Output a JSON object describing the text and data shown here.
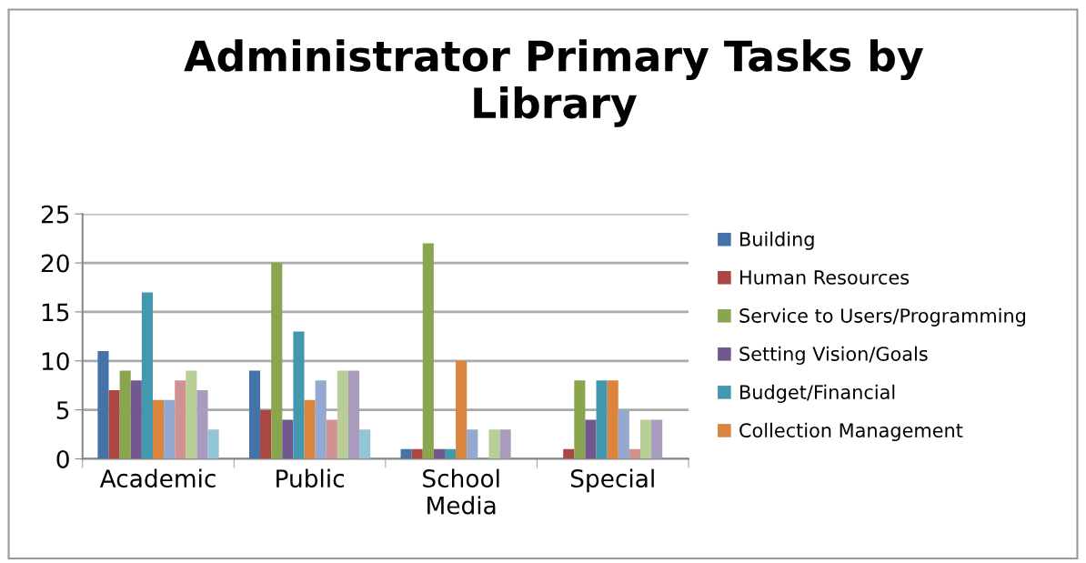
{
  "chart_data": {
    "type": "bar",
    "title": "Administrator Primary Tasks by Library",
    "categories": [
      "Academic",
      "Public",
      "School\nMedia",
      "Special"
    ],
    "series": [
      {
        "name": "Building",
        "color": "#4572a7",
        "values": [
          11,
          9,
          1,
          0
        ]
      },
      {
        "name": "Human Resources",
        "color": "#aa4643",
        "values": [
          7,
          5,
          1,
          1
        ]
      },
      {
        "name": "Service to Users/Programming",
        "color": "#89a54e",
        "values": [
          9,
          20,
          22,
          8
        ]
      },
      {
        "name": "Setting Vision/Goals",
        "color": "#71588f",
        "values": [
          8,
          4,
          1,
          4
        ]
      },
      {
        "name": "Budget/Financial",
        "color": "#4198af",
        "values": [
          17,
          13,
          1,
          8
        ]
      },
      {
        "name": "Collection Management",
        "color": "#db843d",
        "values": [
          6,
          6,
          10,
          8
        ]
      },
      {
        "color": "#93a9cf",
        "values": [
          6,
          8,
          3,
          5
        ]
      },
      {
        "color": "#d19392",
        "values": [
          8,
          4,
          0,
          1
        ]
      },
      {
        "color": "#b9cd96",
        "values": [
          9,
          9,
          3,
          4
        ]
      },
      {
        "color": "#a99bbd",
        "values": [
          7,
          9,
          3,
          4
        ]
      },
      {
        "color": "#92c5d6",
        "values": [
          3,
          3,
          0,
          0
        ]
      }
    ],
    "ylim": [
      0,
      25
    ],
    "yticks": [
      0,
      5,
      10,
      15,
      20,
      25
    ],
    "grid": "y",
    "legend": "right"
  }
}
